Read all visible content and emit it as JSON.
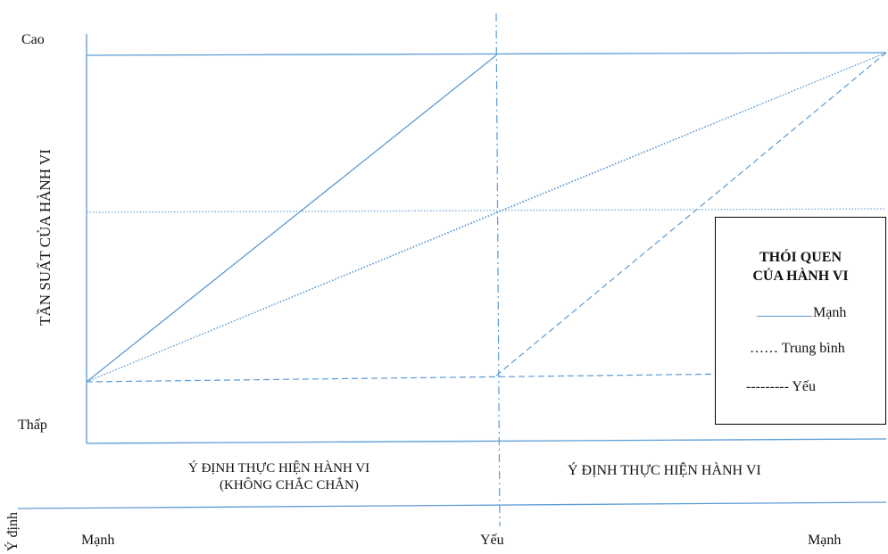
{
  "y_axis": {
    "title": "TẦN SUẤT CỦA HÀNH VI",
    "top_label": "Cao",
    "bottom_label": "Thấp"
  },
  "x_sections": {
    "left_label_line1": "Ý ĐỊNH THỰC HIỆN HÀNH VI",
    "left_label_line2": "(KHÔNG CHẮC CHẮN)",
    "right_label": "Ý ĐỊNH THỰC HIỆN HÀNH VI"
  },
  "intent_axis": {
    "title": "Ý định",
    "left_label": "Mạnh",
    "middle_label": "Yếu",
    "right_label": "Mạnh"
  },
  "legend": {
    "title_line1": "THÓI QUEN",
    "title_line2": "CỦA HÀNH VI",
    "items": [
      {
        "prefix": "",
        "label": "Mạnh",
        "style": "solid"
      },
      {
        "prefix": "……",
        "label": "Trung bình",
        "style": "dotted"
      },
      {
        "prefix": "---------",
        "label": "Yếu",
        "style": "dashed"
      }
    ]
  },
  "colors": {
    "line": "#5b9bd5",
    "frame": "#000000"
  }
}
